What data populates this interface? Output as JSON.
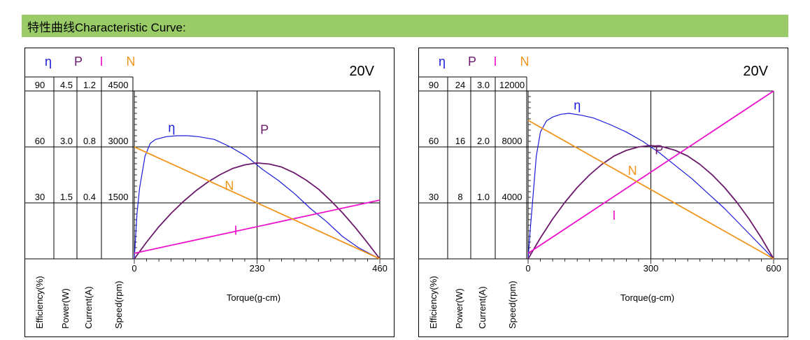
{
  "header": {
    "title": "特性曲线Characteristic Curve:"
  },
  "colors": {
    "eff": "#1a1adb",
    "power": "#6b1a6b",
    "current": "#ee11cc",
    "speed": "#f0961e",
    "header_bg": "#99cc66",
    "grid": "#000000"
  },
  "chart_data": [
    {
      "type": "line",
      "voltage_label": "20V",
      "axis_symbols": {
        "eff": "η",
        "power": "P",
        "current": "I",
        "speed": "N"
      },
      "axis_labels": {
        "eff": "Efficiency(%)",
        "power": "Power(W)",
        "current": "Current(A)",
        "speed": "Speed(rpm)"
      },
      "xlabel": "Torque(g-cm)",
      "xlim": [
        0,
        460
      ],
      "xticks": [
        "0",
        "230",
        "460"
      ],
      "grid_x_values": [
        230
      ],
      "rows": [
        {
          "eff": "90",
          "power": "4.5",
          "current": "1.2",
          "speed": "4500"
        },
        {
          "eff": "60",
          "power": "3.0",
          "current": "0.8",
          "speed": "3000"
        },
        {
          "eff": "30",
          "power": "1.5",
          "current": "0.4",
          "speed": "1500"
        }
      ],
      "scales": {
        "eff": [
          0,
          90
        ],
        "power": [
          0,
          4.5
        ],
        "current": [
          0,
          1.2
        ],
        "speed": [
          0,
          4500
        ]
      },
      "series": [
        {
          "key": "eff",
          "name": "η",
          "x": [
            0,
            5,
            10,
            20,
            30,
            40,
            60,
            80,
            100,
            120,
            150,
            180,
            210,
            240,
            270,
            300,
            330,
            360,
            390,
            420,
            460
          ],
          "y": [
            0,
            24,
            38,
            55,
            62,
            64,
            65.5,
            66,
            66,
            65.5,
            64,
            60,
            55,
            48,
            42,
            35,
            27,
            20,
            12,
            6,
            0
          ]
        },
        {
          "key": "power",
          "name": "P",
          "x": [
            0,
            23,
            46,
            69,
            92,
            115,
            138,
            161,
            184,
            207,
            230,
            253,
            276,
            299,
            322,
            345,
            368,
            391,
            414,
            437,
            460
          ],
          "y": [
            0,
            0.45,
            0.86,
            1.22,
            1.54,
            1.82,
            2.06,
            2.26,
            2.42,
            2.52,
            2.57,
            2.54,
            2.46,
            2.31,
            2.11,
            1.87,
            1.56,
            1.22,
            0.84,
            0.43,
            0
          ]
        },
        {
          "key": "current",
          "name": "I",
          "x": [
            0,
            460
          ],
          "y": [
            0.04,
            0.42
          ]
        },
        {
          "key": "speed",
          "name": "N",
          "x": [
            0,
            460
          ],
          "y": [
            3000,
            0
          ]
        }
      ],
      "curve_labels": [
        {
          "key": "eff",
          "text": "η",
          "x": 70,
          "y": 68
        },
        {
          "key": "power",
          "text": "P",
          "x": 244,
          "y": 67
        },
        {
          "key": "speed",
          "text": "N",
          "x": 178,
          "y": 37
        },
        {
          "key": "current",
          "text": "I",
          "x": 190,
          "y": 13
        }
      ]
    },
    {
      "type": "line",
      "voltage_label": "20V",
      "axis_symbols": {
        "eff": "η",
        "power": "P",
        "current": "I",
        "speed": "N"
      },
      "axis_labels": {
        "eff": "Efficiency(%)",
        "power": "Power(W)",
        "current": "Current(A)",
        "speed": "Speed(rpm)"
      },
      "xlabel": "Torque(g-cm)",
      "xlim": [
        0,
        600
      ],
      "xticks": [
        "0",
        "300",
        "600"
      ],
      "grid_x_values": [
        300
      ],
      "rows": [
        {
          "eff": "90",
          "power": "24",
          "current": "3.0",
          "speed": "12000"
        },
        {
          "eff": "60",
          "power": "16",
          "current": "2.0",
          "speed": "8000"
        },
        {
          "eff": "30",
          "power": "8",
          "current": "1.0",
          "speed": "4000"
        }
      ],
      "scales": {
        "eff": [
          0,
          90
        ],
        "power": [
          0,
          24
        ],
        "current": [
          0,
          3.0
        ],
        "speed": [
          0,
          12000
        ]
      },
      "series": [
        {
          "key": "eff",
          "name": "η",
          "x": [
            0,
            5,
            10,
            20,
            30,
            45,
            60,
            80,
            100,
            130,
            160,
            200,
            240,
            280,
            320,
            360,
            400,
            440,
            480,
            520,
            560,
            600
          ],
          "y": [
            0,
            15,
            28,
            55,
            68,
            74,
            76,
            77.5,
            78,
            77,
            75.5,
            72,
            68,
            63,
            57,
            50,
            43,
            35,
            27,
            18,
            9,
            0
          ]
        },
        {
          "key": "power",
          "name": "P",
          "x": [
            0,
            30,
            60,
            90,
            120,
            150,
            180,
            210,
            240,
            270,
            300,
            330,
            360,
            390,
            420,
            450,
            480,
            510,
            540,
            570,
            600
          ],
          "y": [
            0,
            3,
            5.7,
            8.1,
            10.2,
            12,
            13.5,
            14.7,
            15.5,
            16,
            16.2,
            16,
            15.5,
            14.7,
            13.5,
            12,
            10.2,
            8.1,
            5.7,
            3,
            0
          ]
        },
        {
          "key": "current",
          "name": "I",
          "x": [
            0,
            600
          ],
          "y": [
            0.1,
            3.0
          ]
        },
        {
          "key": "speed",
          "name": "N",
          "x": [
            0,
            600
          ],
          "y": [
            9900,
            0
          ]
        }
      ],
      "curve_labels": [
        {
          "key": "eff",
          "text": "η",
          "x": 120,
          "y": 80
        },
        {
          "key": "power",
          "text": "P",
          "x": 320,
          "y": 56
        },
        {
          "key": "speed",
          "text": "N",
          "x": 255,
          "y": 45
        },
        {
          "key": "current",
          "text": "I",
          "x": 210,
          "y": 21
        }
      ]
    }
  ]
}
